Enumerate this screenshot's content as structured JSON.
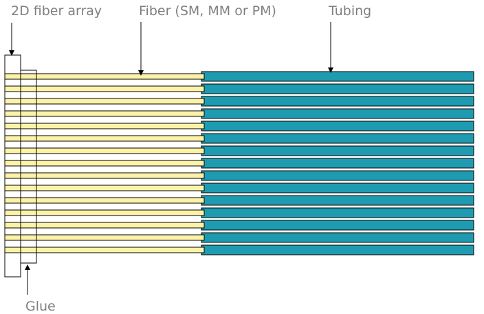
{
  "labels": {
    "array": "2D fiber array",
    "fiber": "Fiber (SM, MM or PM)",
    "tubing": "Tubing",
    "glue": "Glue"
  },
  "colors": {
    "fiber": "#fdf3a8",
    "tubing": "#1e9bb0",
    "outline": "#000000",
    "label": "#7f7f7f"
  },
  "fiber_count": 15
}
